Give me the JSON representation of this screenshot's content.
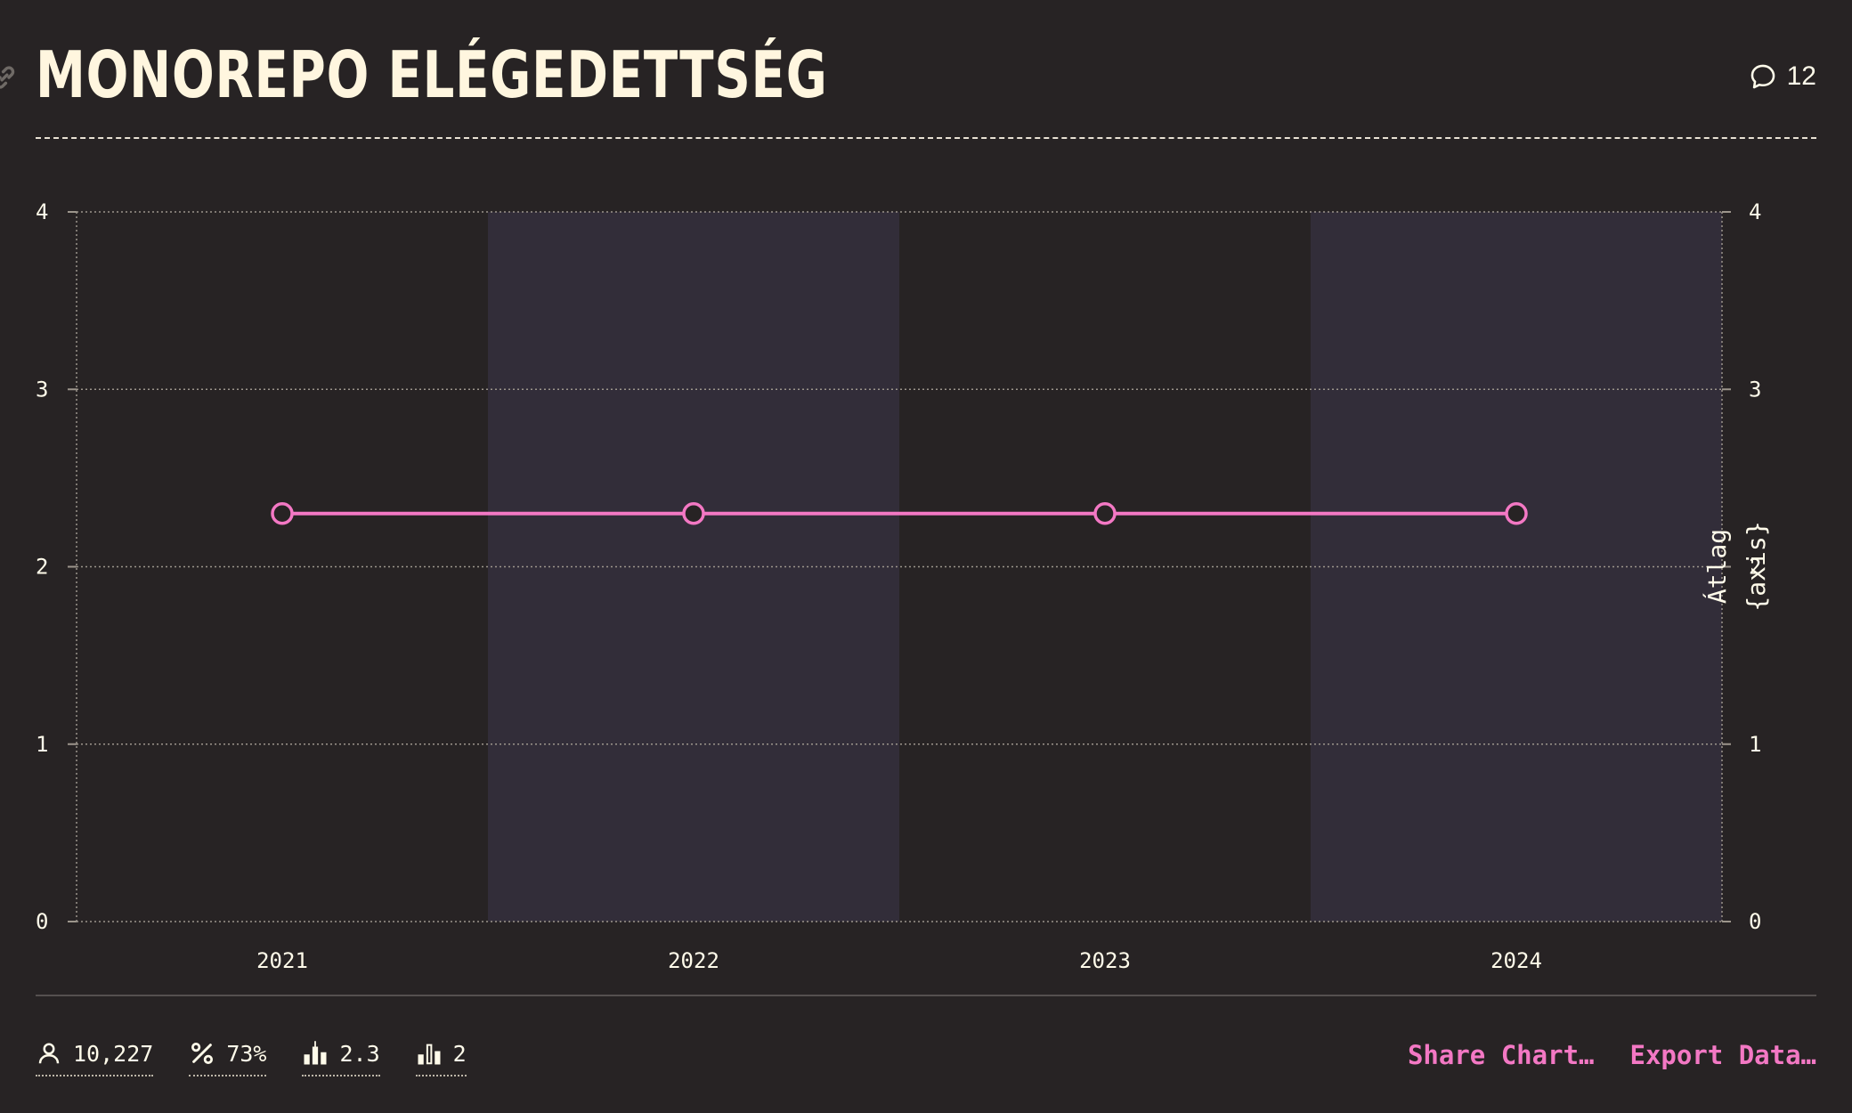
{
  "header": {
    "title": "MONOREPO ELÉGEDETTSÉG",
    "comment_count": "12"
  },
  "chart_data": {
    "type": "line",
    "title": "MONOREPO ELÉGEDETTSÉG",
    "categories": [
      "2021",
      "2022",
      "2023",
      "2024"
    ],
    "series": [
      {
        "values": [
          2.3,
          2.3,
          2.3,
          2.3
        ]
      }
    ],
    "ylim": [
      0,
      4
    ],
    "y_ticks": [
      "0",
      "1",
      "2",
      "3",
      "4"
    ],
    "y_ticks_right": [
      "0",
      "1",
      "2",
      "3",
      "4"
    ],
    "right_axis_label_lines": [
      "Átlag",
      "{axis}"
    ],
    "grid": true,
    "band_stripes": true,
    "colors": {
      "line": "#f378c4",
      "band_even": "#272324",
      "band_odd": "#322d39",
      "grid": "#9c958c",
      "marker_fill": "#272324"
    }
  },
  "footer": {
    "stats": [
      {
        "icon": "user-icon",
        "value": "10,227"
      },
      {
        "icon": "percent-icon",
        "value": "73%"
      },
      {
        "icon": "bar-chart-icon",
        "value": "2.3"
      },
      {
        "icon": "bar-chart-outline-icon",
        "value": "2"
      }
    ],
    "actions": {
      "share_label": "Share Chart…",
      "export_label": "Export Data…"
    }
  }
}
